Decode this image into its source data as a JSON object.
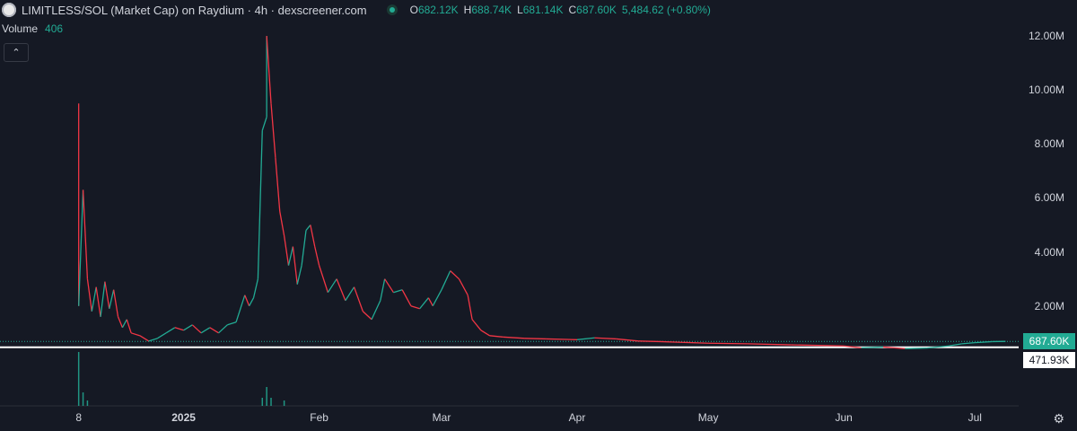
{
  "header": {
    "title": "LIMITLESS/SOL (Market Cap) on Raydium · 4h · dexscreener.com",
    "ohlc": [
      {
        "k": "O",
        "v": "682.12K"
      },
      {
        "k": "H",
        "v": "688.74K"
      },
      {
        "k": "L",
        "v": "681.14K"
      },
      {
        "k": "C",
        "v": "687.60K"
      }
    ],
    "change": "5,484.62 (+0.80%)"
  },
  "volume": {
    "label": "Volume",
    "value": "406"
  },
  "price_tags": {
    "current": "687.60K",
    "reference": "471.93K"
  },
  "colors": {
    "up": "#22ab94",
    "down": "#f23645",
    "background": "#151924",
    "text": "#d1d4dc"
  },
  "icons": {
    "collapse": "chevron-up-icon",
    "settings": "gear-icon"
  },
  "chart_data": {
    "type": "line",
    "title": "LIMITLESS/SOL (Market Cap) on Raydium · 4h · dexscreener.com",
    "y_tick_labels": [
      "2.00M",
      "4.00M",
      "6.00M",
      "8.00M",
      "10.00M",
      "12.00M"
    ],
    "y_ticks": [
      2000000,
      4000000,
      6000000,
      8000000,
      10000000,
      12000000
    ],
    "ylim": [
      -1700000,
      12600000
    ],
    "x_tick_labels": [
      {
        "label": "8",
        "date": "2024-12-08"
      },
      {
        "label": "2025",
        "date": "2025-01-01",
        "bold": true
      },
      {
        "label": "Feb",
        "date": "2025-02-01"
      },
      {
        "label": "Mar",
        "date": "2025-03-01"
      },
      {
        "label": "Apr",
        "date": "2025-04-01"
      },
      {
        "label": "May",
        "date": "2025-05-01"
      },
      {
        "label": "Jun",
        "date": "2025-06-01"
      },
      {
        "label": "Jul",
        "date": "2025-07-01"
      }
    ],
    "xlim": [
      "2024-11-20",
      "2025-07-11"
    ],
    "grid": false,
    "series": [
      {
        "name": "Market Cap",
        "points": [
          [
            "2024-12-08",
            9500000
          ],
          [
            "2024-12-08",
            2000000
          ],
          [
            "2024-12-09",
            6300000
          ],
          [
            "2024-12-10",
            3000000
          ],
          [
            "2024-12-11",
            1800000
          ],
          [
            "2024-12-12",
            2700000
          ],
          [
            "2024-12-13",
            1600000
          ],
          [
            "2024-12-14",
            2900000
          ],
          [
            "2024-12-15",
            1900000
          ],
          [
            "2024-12-16",
            2600000
          ],
          [
            "2024-12-17",
            1600000
          ],
          [
            "2024-12-18",
            1200000
          ],
          [
            "2024-12-19",
            1500000
          ],
          [
            "2024-12-20",
            1000000
          ],
          [
            "2024-12-22",
            900000
          ],
          [
            "2024-12-24",
            700000
          ],
          [
            "2024-12-26",
            800000
          ],
          [
            "2024-12-28",
            1000000
          ],
          [
            "2024-12-30",
            1200000
          ],
          [
            "2025-01-01",
            1100000
          ],
          [
            "2025-01-03",
            1300000
          ],
          [
            "2025-01-05",
            1000000
          ],
          [
            "2025-01-07",
            1200000
          ],
          [
            "2025-01-09",
            1000000
          ],
          [
            "2025-01-11",
            1300000
          ],
          [
            "2025-01-13",
            1400000
          ],
          [
            "2025-01-15",
            2400000
          ],
          [
            "2025-01-16",
            2000000
          ],
          [
            "2025-01-17",
            2300000
          ],
          [
            "2025-01-18",
            3000000
          ],
          [
            "2025-01-19",
            8500000
          ],
          [
            "2025-01-20",
            9000000
          ],
          [
            "2025-01-20",
            12000000
          ],
          [
            "2025-01-21",
            9500000
          ],
          [
            "2025-01-22",
            7500000
          ],
          [
            "2025-01-23",
            5500000
          ],
          [
            "2025-01-24",
            4600000
          ],
          [
            "2025-01-25",
            3500000
          ],
          [
            "2025-01-26",
            4200000
          ],
          [
            "2025-01-27",
            2800000
          ],
          [
            "2025-01-28",
            3500000
          ],
          [
            "2025-01-29",
            4800000
          ],
          [
            "2025-01-30",
            5000000
          ],
          [
            "2025-01-31",
            4200000
          ],
          [
            "2025-02-01",
            3500000
          ],
          [
            "2025-02-03",
            2500000
          ],
          [
            "2025-02-05",
            3000000
          ],
          [
            "2025-02-07",
            2200000
          ],
          [
            "2025-02-09",
            2700000
          ],
          [
            "2025-02-11",
            1800000
          ],
          [
            "2025-02-13",
            1500000
          ],
          [
            "2025-02-15",
            2200000
          ],
          [
            "2025-02-16",
            3000000
          ],
          [
            "2025-02-18",
            2500000
          ],
          [
            "2025-02-20",
            2600000
          ],
          [
            "2025-02-22",
            2000000
          ],
          [
            "2025-02-24",
            1900000
          ],
          [
            "2025-02-26",
            2300000
          ],
          [
            "2025-02-27",
            2000000
          ],
          [
            "2025-03-01",
            2600000
          ],
          [
            "2025-03-03",
            3300000
          ],
          [
            "2025-03-05",
            3000000
          ],
          [
            "2025-03-07",
            2400000
          ],
          [
            "2025-03-08",
            1500000
          ],
          [
            "2025-03-10",
            1100000
          ],
          [
            "2025-03-12",
            900000
          ],
          [
            "2025-03-15",
            850000
          ],
          [
            "2025-03-20",
            800000
          ],
          [
            "2025-03-25",
            780000
          ],
          [
            "2025-04-01",
            750000
          ],
          [
            "2025-04-05",
            820000
          ],
          [
            "2025-04-10",
            780000
          ],
          [
            "2025-04-15",
            700000
          ],
          [
            "2025-04-20",
            680000
          ],
          [
            "2025-05-01",
            620000
          ],
          [
            "2025-05-10",
            600000
          ],
          [
            "2025-05-20",
            560000
          ],
          [
            "2025-06-01",
            520000
          ],
          [
            "2025-06-05",
            450000
          ],
          [
            "2025-06-10",
            480000
          ],
          [
            "2025-06-15",
            420000
          ],
          [
            "2025-06-20",
            440000
          ],
          [
            "2025-06-25",
            520000
          ],
          [
            "2025-06-28",
            600000
          ],
          [
            "2025-07-01",
            640000
          ],
          [
            "2025-07-05",
            680000
          ],
          [
            "2025-07-08",
            687600
          ]
        ]
      }
    ],
    "volume_spikes": [
      [
        "2024-12-08",
        1.0
      ],
      [
        "2024-12-09",
        0.25
      ],
      [
        "2024-12-10",
        0.1
      ],
      [
        "2025-01-19",
        0.15
      ],
      [
        "2025-01-20",
        0.35
      ],
      [
        "2025-01-21",
        0.15
      ],
      [
        "2025-01-24",
        0.1
      ]
    ],
    "price_lines": [
      687600,
      471930
    ]
  }
}
